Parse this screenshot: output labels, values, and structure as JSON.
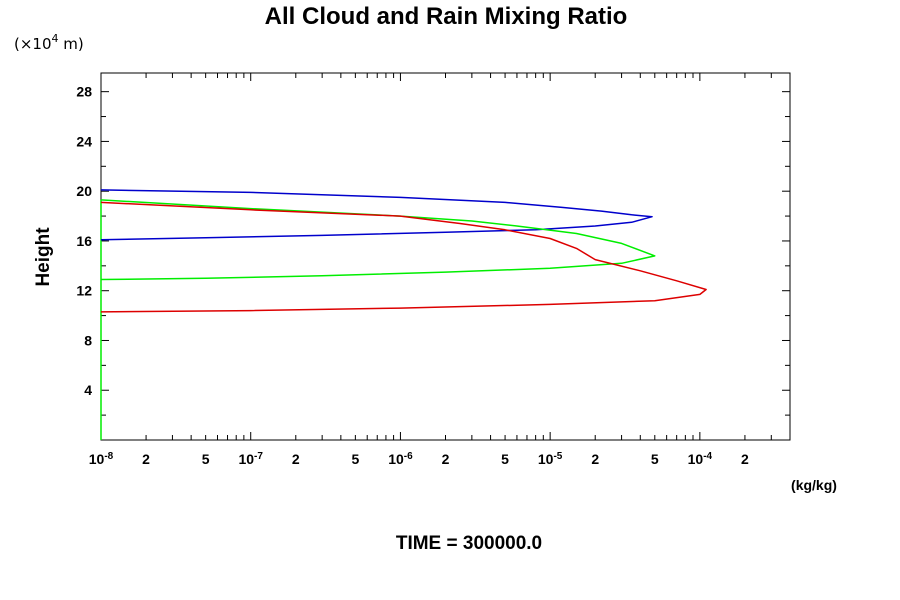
{
  "chart_data": {
    "type": "line",
    "title": "All Cloud and Rain Mixing Ratio",
    "y_units": "(×10",
    "y_units_exp": "4",
    "y_units_tail": " m)",
    "ylabel": "Height",
    "xunit": "(kg/kg)",
    "time_label": "TIME = 300000.0",
    "x_scale": "log",
    "xlim": [
      1e-08,
      0.0004
    ],
    "ylim": [
      0,
      29.5
    ],
    "y_ticks": [
      4,
      8,
      12,
      16,
      20,
      24,
      28
    ],
    "x_tick_labels": [
      {
        "value": 1e-08,
        "base": "10",
        "exp": "-8"
      },
      {
        "value": 2e-08,
        "base": "2",
        "exp": ""
      },
      {
        "value": 5e-08,
        "base": "5",
        "exp": ""
      },
      {
        "value": 1e-07,
        "base": "10",
        "exp": "-7"
      },
      {
        "value": 2e-07,
        "base": "2",
        "exp": ""
      },
      {
        "value": 5e-07,
        "base": "5",
        "exp": ""
      },
      {
        "value": 1e-06,
        "base": "10",
        "exp": "-6"
      },
      {
        "value": 2e-06,
        "base": "2",
        "exp": ""
      },
      {
        "value": 5e-06,
        "base": "5",
        "exp": ""
      },
      {
        "value": 1e-05,
        "base": "10",
        "exp": "-5"
      },
      {
        "value": 2e-05,
        "base": "2",
        "exp": ""
      },
      {
        "value": 5e-05,
        "base": "5",
        "exp": ""
      },
      {
        "value": 0.0001,
        "base": "10",
        "exp": "-4"
      },
      {
        "value": 0.0002,
        "base": "2",
        "exp": ""
      }
    ],
    "grid": false,
    "series": [
      {
        "color": "#0000cc",
        "points": [
          [
            1e-08,
            20.1
          ],
          [
            1e-07,
            19.9
          ],
          [
            1e-06,
            19.5
          ],
          [
            5e-06,
            19.1
          ],
          [
            1.2e-05,
            18.7
          ],
          [
            2.2e-05,
            18.4
          ],
          [
            3.5e-05,
            18.1
          ],
          [
            4.8e-05,
            17.95
          ],
          [
            3.5e-05,
            17.5
          ],
          [
            2e-05,
            17.2
          ],
          [
            8e-06,
            16.9
          ],
          [
            2e-06,
            16.7
          ],
          [
            3e-07,
            16.45
          ],
          [
            5e-08,
            16.25
          ],
          [
            1e-08,
            16.1
          ]
        ]
      },
      {
        "color": "#00ee00",
        "points": [
          [
            1e-08,
            19.3
          ],
          [
            1e-07,
            18.6
          ],
          [
            1e-06,
            18.0
          ],
          [
            3e-06,
            17.6
          ],
          [
            6e-06,
            17.2
          ],
          [
            1.5e-05,
            16.6
          ],
          [
            3e-05,
            15.8
          ],
          [
            5e-05,
            14.8
          ],
          [
            3e-05,
            14.2
          ],
          [
            1e-05,
            13.8
          ],
          [
            2e-06,
            13.5
          ],
          [
            3e-07,
            13.2
          ],
          [
            5e-08,
            13.0
          ],
          [
            1e-08,
            12.9
          ]
        ]
      },
      {
        "color": "#dd0000",
        "points": [
          [
            1e-08,
            19.1
          ],
          [
            1e-07,
            18.5
          ],
          [
            1e-06,
            18.0
          ],
          [
            2.5e-06,
            17.4
          ],
          [
            5e-06,
            16.9
          ],
          [
            1e-05,
            16.2
          ],
          [
            1.5e-05,
            15.4
          ],
          [
            2e-05,
            14.5
          ],
          [
            4e-05,
            13.6
          ],
          [
            7e-05,
            12.8
          ],
          [
            0.00011,
            12.1
          ],
          [
            0.0001,
            11.7
          ],
          [
            5e-05,
            11.2
          ],
          [
            1e-05,
            10.9
          ],
          [
            1e-06,
            10.6
          ],
          [
            1e-07,
            10.4
          ],
          [
            1e-08,
            10.3
          ]
        ]
      }
    ]
  }
}
